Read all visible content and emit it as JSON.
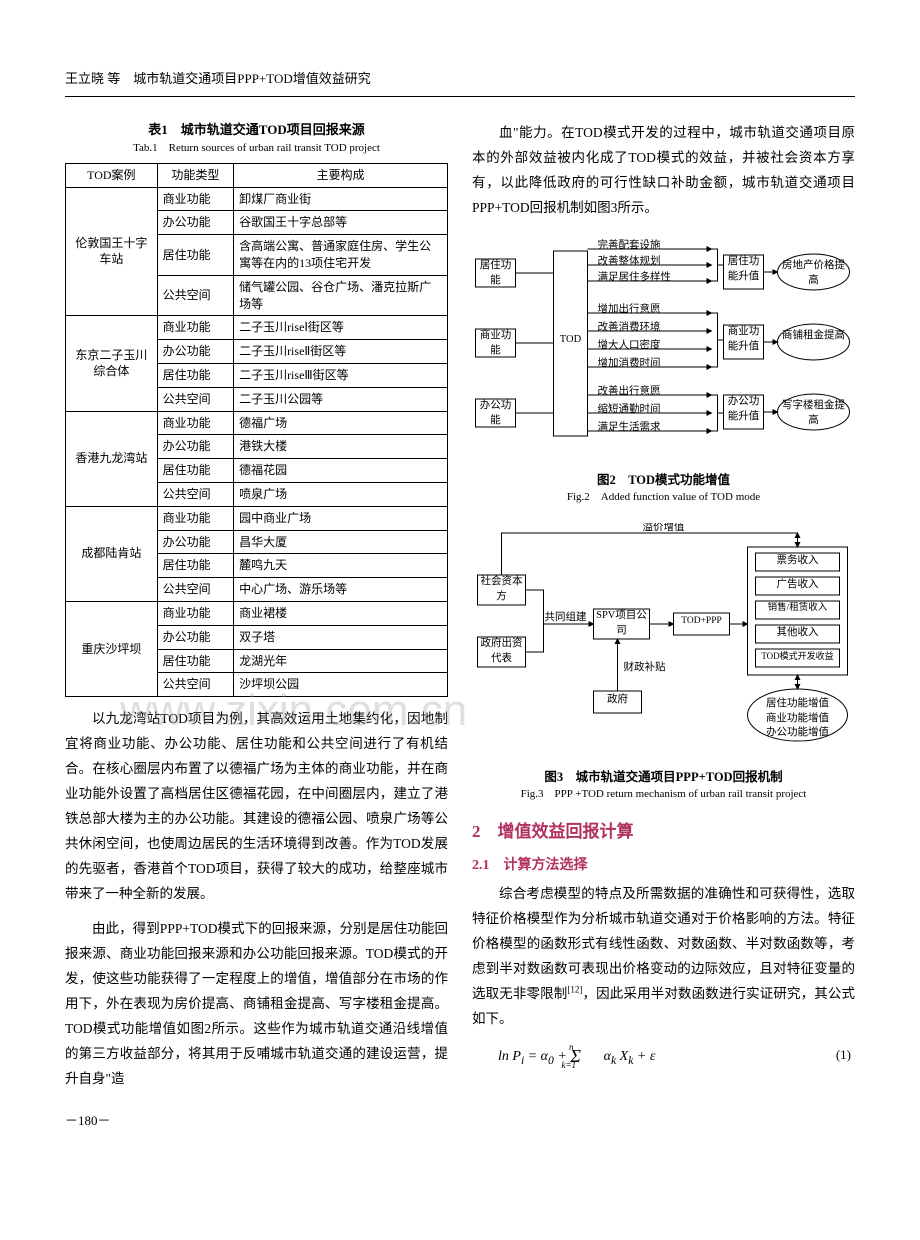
{
  "header": {
    "text": "王立晓 等　城市轨道交通项目PPP+TOD增值效益研究"
  },
  "table1": {
    "title": "表1　城市轨道交通TOD项目回报来源",
    "subtitle": "Tab.1　Return sources of urban rail transit TOD project",
    "columns": [
      "TOD案例",
      "功能类型",
      "主要构成"
    ],
    "groups": [
      {
        "case": "伦敦国王十字车站",
        "rows": [
          [
            "商业功能",
            "卸煤厂商业街"
          ],
          [
            "办公功能",
            "谷歌国王十字总部等"
          ],
          [
            "居住功能",
            "含高端公寓、普通家庭住房、学生公寓等在内的13项住宅开发"
          ],
          [
            "公共空间",
            "储气罐公园、谷仓广场、潘克拉斯广场等"
          ]
        ]
      },
      {
        "case": "东京二子玉川综合体",
        "rows": [
          [
            "商业功能",
            "二子玉川riseⅠ街区等"
          ],
          [
            "办公功能",
            "二子玉川riseⅡ街区等"
          ],
          [
            "居住功能",
            "二子玉川riseⅢ街区等"
          ],
          [
            "公共空间",
            "二子玉川公园等"
          ]
        ]
      },
      {
        "case": "香港九龙湾站",
        "rows": [
          [
            "商业功能",
            "德福广场"
          ],
          [
            "办公功能",
            "港铁大楼"
          ],
          [
            "居住功能",
            "德福花园"
          ],
          [
            "公共空间",
            "喷泉广场"
          ]
        ]
      },
      {
        "case": "成都陆肯站",
        "rows": [
          [
            "商业功能",
            "园中商业广场"
          ],
          [
            "办公功能",
            "昌华大厦"
          ],
          [
            "居住功能",
            "麓鸣九天"
          ],
          [
            "公共空间",
            "中心广场、游乐场等"
          ]
        ]
      },
      {
        "case": "重庆沙坪坝",
        "rows": [
          [
            "商业功能",
            "商业裙楼"
          ],
          [
            "办公功能",
            "双子塔"
          ],
          [
            "居住功能",
            "龙湖光年"
          ],
          [
            "公共空间",
            "沙坪坝公园"
          ]
        ]
      }
    ]
  },
  "left_paras": {
    "p1": "以九龙湾站TOD项目为例，其高效运用土地集约化，因地制宜将商业功能、办公功能、居住功能和公共空间进行了有机结合。在核心圈层内布置了以德福广场为主体的商业功能，并在商业功能外设置了高档居住区德福花园，在中间圈层内，建立了港铁总部大楼为主的办公功能。其建设的德福公园、喷泉广场等公共休闲空间，也使周边居民的生活环境得到改善。作为TOD发展的先驱者，香港首个TOD项目，获得了较大的成功，给整座城市带来了一种全新的发展。",
    "p2": "由此，得到PPP+TOD模式下的回报来源，分别是居住功能回报来源、商业功能回报来源和办公功能回报来源。TOD模式的开发，使这些功能获得了一定程度上的增值，增值部分在市场的作用下，外在表现为房价提高、商铺租金提高、写字楼租金提高。TOD模式功能增值如图2所示。这些作为城市轨道交通沿线增值的第三方收益部分，将其用于反哺城市轨道交通的建设运营，提升自身\"造"
  },
  "right_paras": {
    "p1": "血\"能力。在TOD模式开发的过程中，城市轨道交通项目原本的外部效益被内化成了TOD模式的效益，并被社会资本方享有，以此降低政府的可行性缺口补助金额，城市轨道交通项目PPP+TOD回报机制如图3所示。"
  },
  "fig2": {
    "title": "图2　TOD模式功能增值",
    "subtitle": "Fig.2　Added function value of TOD mode",
    "left_nodes": [
      "居住功能",
      "商业功能",
      "办公功能"
    ],
    "center": "TOD",
    "mid_lines": {
      "g1": [
        "完善配套设施",
        "改善整体规划",
        "满足居住多样性"
      ],
      "g2": [
        "增加出行意愿",
        "改善消费环境",
        "增大人口密度",
        "增加消费时间"
      ],
      "g3": [
        "改善出行意愿",
        "缩短通勤时间",
        "满足生活需求"
      ]
    },
    "right_boxes": [
      "居住功能升值",
      "商业功能升值",
      "办公功能升值"
    ],
    "right_ovals": [
      "房地产价格提高",
      "商铺租金提高",
      "写字楼租金提高"
    ]
  },
  "fig3": {
    "title": "图3　城市轨道交通项目PPP+TOD回报机制",
    "subtitle": "Fig.3　PPP +TOD return mechanism of urban rail transit project",
    "nodes": {
      "social": "社会资本方",
      "gov_rep": "政府出资代表",
      "spv": "SPV项目公司",
      "gov": "政府",
      "todppp": "TOD+PPP",
      "revenues": [
        "票务收入",
        "广告收入",
        "销售/租赁收入",
        "其他收入",
        "TOD模式开发收益"
      ],
      "oval": "居住功能增值\n商业功能增值\n办公功能增值"
    },
    "edge_labels": {
      "premium": "溢价增值",
      "cobuild": "共同组建",
      "subsidy": "财政补贴"
    }
  },
  "section2": {
    "title": "2　增值效益回报计算"
  },
  "subsection21": {
    "title": "2.1　计算方法选择"
  },
  "s21_para": "综合考虑模型的特点及所需数据的准确性和可获得性，选取特征价格模型作为分析城市轨道交通对于价格影响的方法。特征价格模型的函数形式有线性函数、对数函数、半对数函数等，考虑到半对数函数可表现出价格变动的边际效应，且对特征变量的选取无非零限制[12]，因此采用半对数函数进行实证研究，其公式如下。",
  "formula": {
    "text": "ln Pᵢ = α₀ + Σ αₖ Xₖ + ε",
    "num": "(1)",
    "sub": "k=1",
    "sup": "n"
  },
  "watermark": "www.zixin.com.cn",
  "page_number": "－180－",
  "colors": {
    "accent": "#b03060",
    "text": "#000000",
    "border": "#000000",
    "bg": "#ffffff"
  }
}
